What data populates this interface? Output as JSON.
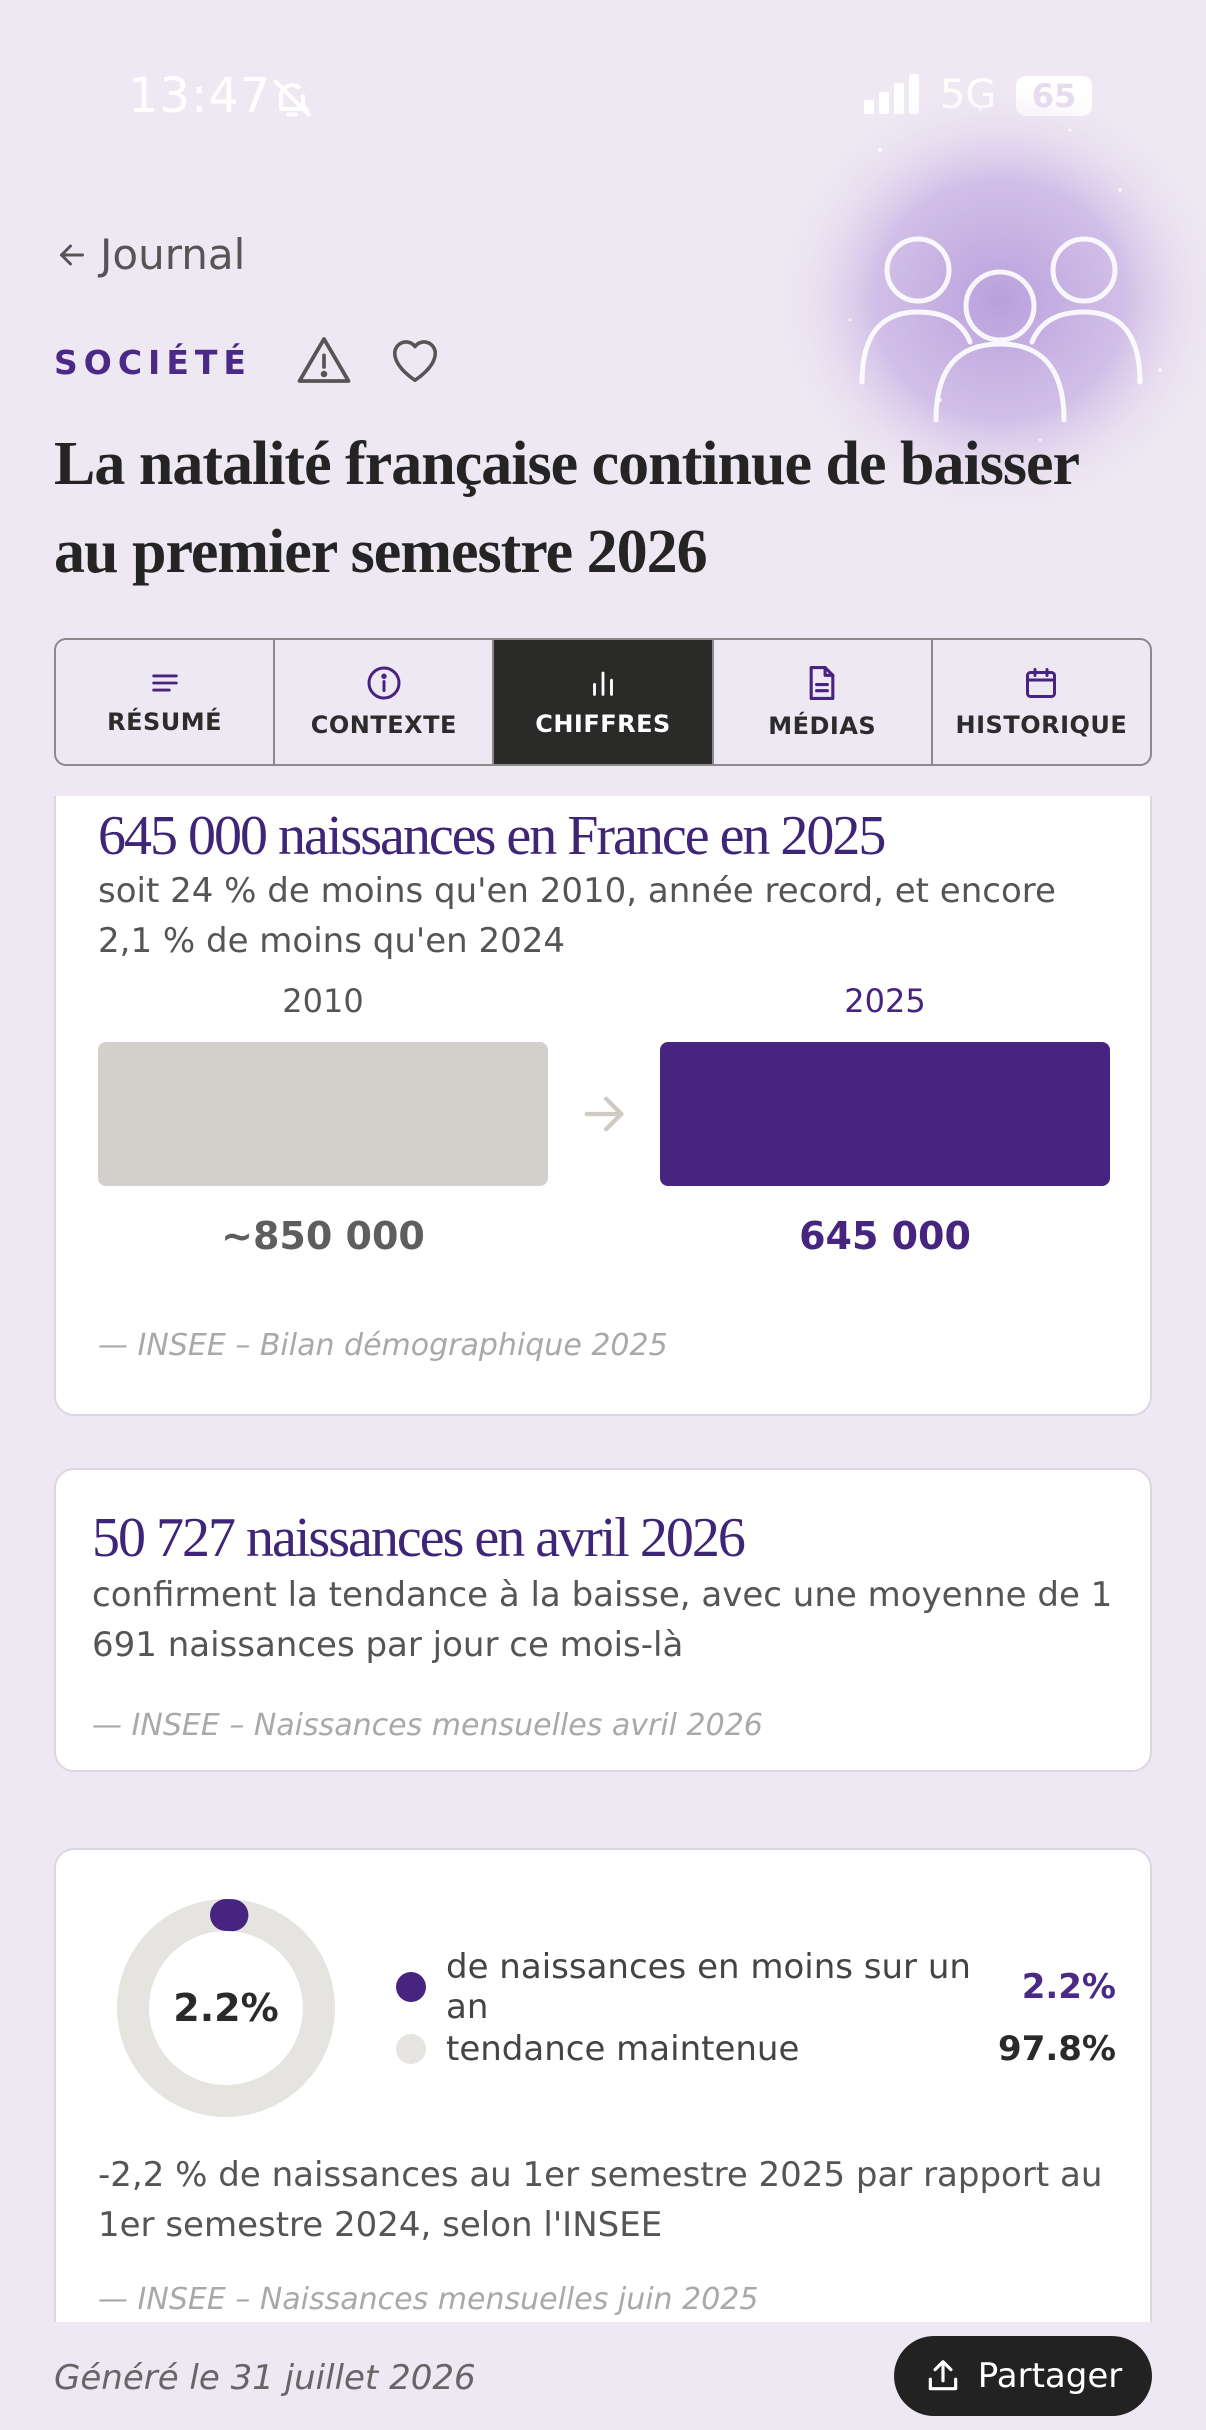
{
  "status_bar": {
    "time": "13:47",
    "network": "5G",
    "battery": "65",
    "icons": [
      "bell-slash-icon",
      "signal-icon"
    ]
  },
  "nav": {
    "back_label": "Journal",
    "back_icon": "arrow-left-icon"
  },
  "article": {
    "category": "SOCIÉTÉ",
    "title": "La natalité française continue de baisser au premier semestre 2026",
    "hero_icon": "people-group-icon",
    "accent": "#46247f"
  },
  "tabs": [
    {
      "label": "RÉSUMÉ",
      "icon": "lines-icon",
      "active": false
    },
    {
      "label": "CONTEXTE",
      "icon": "info-icon",
      "active": false
    },
    {
      "label": "CHIFFRES",
      "icon": "bar-chart-icon",
      "active": true
    },
    {
      "label": "MÉDIAS",
      "icon": "document-icon",
      "active": false
    },
    {
      "label": "HISTORIQUE",
      "icon": "calendar-icon",
      "active": false
    }
  ],
  "cards": {
    "births_2025": {
      "title": "645 000 naissances en France en 2025",
      "description": "soit 24 % de moins qu'en 2010, année record, et encore 2,1 % de moins qu'en 2024",
      "from_year": "2010",
      "from_value": "~850 000",
      "to_year": "2025",
      "to_value": "645 000",
      "from_color": "#d3d0cb",
      "to_color": "#46247f",
      "source": "— INSEE – Bilan démographique 2025"
    },
    "births_april": {
      "title": "50 727 naissances en avril 2026",
      "description": "confirment la tendance à la baisse, avec une moyenne de 1 691 naissances par jour ce mois-là",
      "source": "— INSEE – Naissances mensuelles avril 2026"
    },
    "drop_semester": {
      "center_label": "2.2%",
      "legend": [
        {
          "label": "de naissances en moins sur un an",
          "value": "2.2%",
          "color": "#46247f"
        },
        {
          "label": "tendance maintenue",
          "value": "97.8%",
          "color": "#e6e4e0"
        }
      ],
      "description": "-2,2 % de naissances au 1er semestre 2025 par rapport au 1er semestre 2024, selon l'INSEE",
      "source": "— INSEE – Naissances mensuelles juin 2025"
    }
  },
  "chart_data": {
    "type": "pie",
    "categories": [
      "de naissances en moins sur un an",
      "tendance maintenue"
    ],
    "values": [
      2.2,
      97.8
    ]
  },
  "footer": {
    "generated": "Généré le 31 juillet 2026",
    "share_label": "Partager",
    "share_icon": "upload-icon"
  }
}
